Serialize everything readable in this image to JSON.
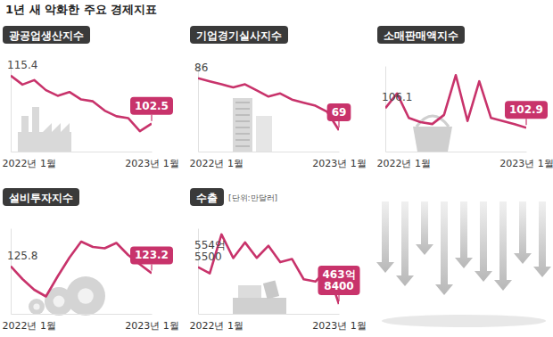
{
  "title": "1년 새 악화한 주요 경제지표",
  "chart_data": [
    {
      "type": "line",
      "title": "광공업생산지수",
      "color": "#c8336b",
      "categories": [
        "2022년 1월",
        null,
        null,
        null,
        null,
        null,
        null,
        null,
        null,
        null,
        null,
        null,
        "2023년 1월"
      ],
      "values": [
        115.4,
        113.0,
        114.2,
        111.5,
        110.0,
        111.0,
        109.0,
        108.5,
        106.0,
        104.5,
        104.0,
        100.5,
        102.5
      ],
      "value_labels": [
        "115.4",
        null,
        null,
        null,
        null,
        null,
        null,
        null,
        null,
        null,
        null,
        null,
        "102.5"
      ],
      "data_labels": true,
      "ylim": [
        95,
        118
      ],
      "tick_labels": "x",
      "grid": false,
      "line_style": "solid",
      "marker": "none"
    },
    {
      "type": "line",
      "title": "기업경기실사지수",
      "color": "#c8336b",
      "categories": [
        "2022년 1월",
        null,
        null,
        null,
        null,
        null,
        null,
        null,
        null,
        null,
        null,
        null,
        "2023년 1월"
      ],
      "values": [
        86,
        85,
        84,
        83,
        84,
        82,
        80,
        81,
        79,
        78,
        77,
        75,
        69
      ],
      "value_labels": [
        "86",
        null,
        null,
        null,
        null,
        null,
        null,
        null,
        null,
        null,
        null,
        null,
        "69"
      ],
      "data_labels": true,
      "ylim": [
        62,
        90
      ],
      "tick_labels": "x",
      "grid": false,
      "line_style": "solid",
      "marker": "none"
    },
    {
      "type": "line",
      "title": "소매판매액지수",
      "color": "#c8336b",
      "categories": [
        "2022년 1월",
        null,
        null,
        null,
        null,
        null,
        null,
        null,
        null,
        null,
        null,
        null,
        "2023년 1월"
      ],
      "values": [
        106.1,
        108.5,
        104.5,
        103.8,
        103.5,
        105.0,
        111.5,
        104.0,
        110.5,
        104.5,
        104.0,
        103.5,
        102.9
      ],
      "value_labels": [
        "106.1",
        null,
        null,
        null,
        null,
        null,
        null,
        null,
        null,
        null,
        null,
        null,
        "102.9"
      ],
      "data_labels": true,
      "ylim": [
        99,
        113
      ],
      "tick_labels": "x",
      "grid": false,
      "line_style": "solid",
      "marker": "none"
    },
    {
      "type": "line",
      "title": "설비투자지수",
      "color": "#c8336b",
      "categories": [
        "2022년 1월",
        null,
        null,
        null,
        null,
        null,
        null,
        null,
        null,
        null,
        null,
        null,
        "2023년 1월"
      ],
      "values": [
        125.8,
        121.0,
        117.0,
        114.5,
        122.0,
        129.0,
        135.0,
        133.0,
        132.5,
        134.5,
        130.0,
        126.5,
        123.2
      ],
      "value_labels": [
        "125.8",
        null,
        null,
        null,
        null,
        null,
        null,
        null,
        null,
        null,
        null,
        null,
        "123.2"
      ],
      "data_labels": true,
      "ylim": [
        108,
        140
      ],
      "tick_labels": "x",
      "grid": false,
      "line_style": "solid",
      "marker": "none"
    },
    {
      "type": "line",
      "title": "수출",
      "subtitle": "[단위:만달러]",
      "color": "#c8336b",
      "categories": [
        "2022년 1월",
        null,
        null,
        null,
        null,
        null,
        null,
        null,
        null,
        null,
        null,
        null,
        "2023년 1월"
      ],
      "values": [
        5545500,
        5391000,
        6348000,
        5769000,
        6152000,
        5773000,
        6070000,
        5667000,
        5746000,
        5248000,
        5191000,
        5499000,
        4638400
      ],
      "value_labels": [
        "554억 5500",
        null,
        null,
        null,
        null,
        null,
        null,
        null,
        null,
        null,
        null,
        null,
        "463억 8400"
      ],
      "data_labels": true,
      "ylim": [
        4400000,
        6500000
      ],
      "tick_labels": "x",
      "grid": false,
      "line_style": "solid",
      "marker": "none"
    }
  ]
}
